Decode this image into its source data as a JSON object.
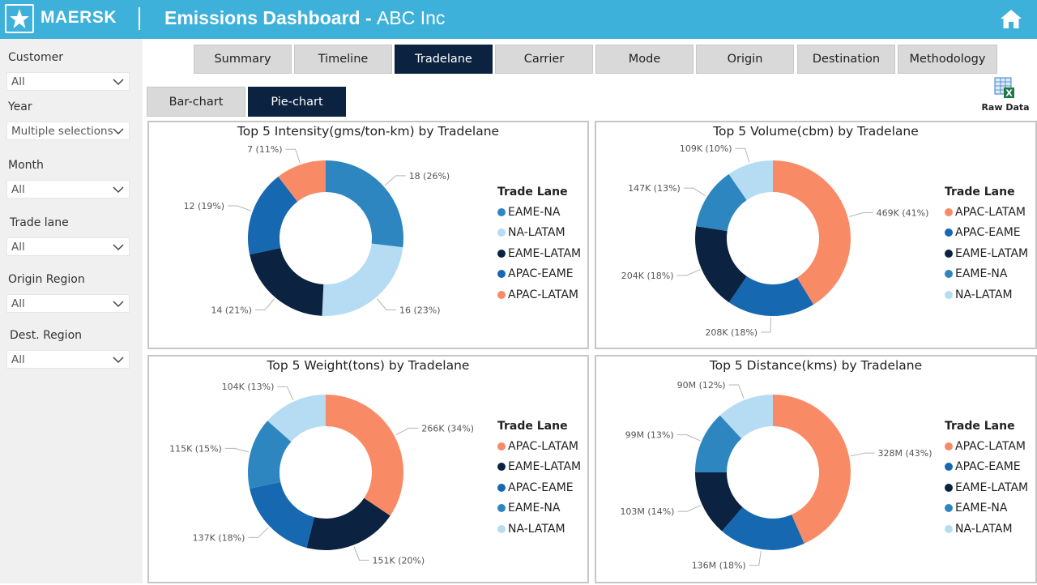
{
  "header": {
    "brand": "MAERSK",
    "title_bold": "Emissions Dashboard - ",
    "title_rest": "ABC Inc",
    "bg_color": "#3db1da"
  },
  "filters": [
    {
      "label": "Customer",
      "value": "All"
    },
    {
      "label": "Year",
      "value": "Multiple selections"
    },
    {
      "label": "Month",
      "value": "All"
    },
    {
      "label": "Trade lane",
      "value": "All"
    },
    {
      "label": "Origin Region",
      "value": "All"
    },
    {
      "label": "Dest. Region",
      "value": "All"
    }
  ],
  "tabs": [
    "Summary",
    "Timeline",
    "Tradelane",
    "Carrier",
    "Mode",
    "Origin",
    "Destination",
    "Methodology"
  ],
  "active_tab": "Tradelane",
  "subtabs": [
    "Bar-chart",
    "Pie-chart"
  ],
  "active_subtab": "Pie-chart",
  "raw_data_label": "Raw Data",
  "legend_title": "Trade Lane",
  "colors": {
    "EAME-NA": "#2e86c1",
    "NA-LATAM": "#b6dcf3",
    "EAME-LATAM": "#0b2340",
    "APAC-EAME": "#1668b0",
    "APAC-LATAM": "#f98a66",
    "dark_navy": "#0b2340"
  },
  "chart_data": [
    {
      "type": "pie",
      "title": "Top 5 Intensity(gms/ton-km) by Tradelane",
      "legend_order": [
        "EAME-NA",
        "NA-LATAM",
        "EAME-LATAM",
        "APAC-EAME",
        "APAC-LATAM"
      ],
      "slices": [
        {
          "name": "EAME-NA",
          "value": 18,
          "label": "18 (26%)"
        },
        {
          "name": "NA-LATAM",
          "value": 16,
          "label": "16 (23%)"
        },
        {
          "name": "EAME-LATAM",
          "value": 14,
          "label": "14 (21%)"
        },
        {
          "name": "APAC-EAME",
          "value": 12,
          "label": "12 (19%)"
        },
        {
          "name": "APAC-LATAM",
          "value": 7,
          "label": "7 (11%)"
        }
      ]
    },
    {
      "type": "pie",
      "title": "Top 5 Volume(cbm) by Tradelane",
      "legend_order": [
        "APAC-LATAM",
        "APAC-EAME",
        "EAME-LATAM",
        "EAME-NA",
        "NA-LATAM"
      ],
      "slices": [
        {
          "name": "APAC-LATAM",
          "value": 469000,
          "label": "469K (41%)"
        },
        {
          "name": "APAC-EAME",
          "value": 208000,
          "label": "208K (18%)"
        },
        {
          "name": "EAME-LATAM",
          "value": 204000,
          "label": "204K (18%)"
        },
        {
          "name": "EAME-NA",
          "value": 147000,
          "label": "147K (13%)"
        },
        {
          "name": "NA-LATAM",
          "value": 109000,
          "label": "109K (10%)"
        }
      ]
    },
    {
      "type": "pie",
      "title": "Top 5 Weight(tons) by Tradelane",
      "legend_order": [
        "APAC-LATAM",
        "EAME-LATAM",
        "APAC-EAME",
        "EAME-NA",
        "NA-LATAM"
      ],
      "slices": [
        {
          "name": "APAC-LATAM",
          "value": 266000,
          "label": "266K (34%)"
        },
        {
          "name": "EAME-LATAM",
          "value": 151000,
          "label": "151K (20%)"
        },
        {
          "name": "APAC-EAME",
          "value": 137000,
          "label": "137K (18%)"
        },
        {
          "name": "EAME-NA",
          "value": 115000,
          "label": "115K (15%)"
        },
        {
          "name": "NA-LATAM",
          "value": 104000,
          "label": "104K (13%)"
        }
      ]
    },
    {
      "type": "pie",
      "title": "Top 5 Distance(kms) by Tradelane",
      "legend_order": [
        "APAC-LATAM",
        "APAC-EAME",
        "EAME-LATAM",
        "EAME-NA",
        "NA-LATAM"
      ],
      "slices": [
        {
          "name": "APAC-LATAM",
          "value": 328,
          "label": "328M (43%)"
        },
        {
          "name": "APAC-EAME",
          "value": 136,
          "label": "136M (18%)"
        },
        {
          "name": "EAME-LATAM",
          "value": 103,
          "label": "103M (14%)"
        },
        {
          "name": "EAME-NA",
          "value": 99,
          "label": "99M (13%)"
        },
        {
          "name": "NA-LATAM",
          "value": 90,
          "label": "90M (12%)"
        }
      ]
    }
  ]
}
